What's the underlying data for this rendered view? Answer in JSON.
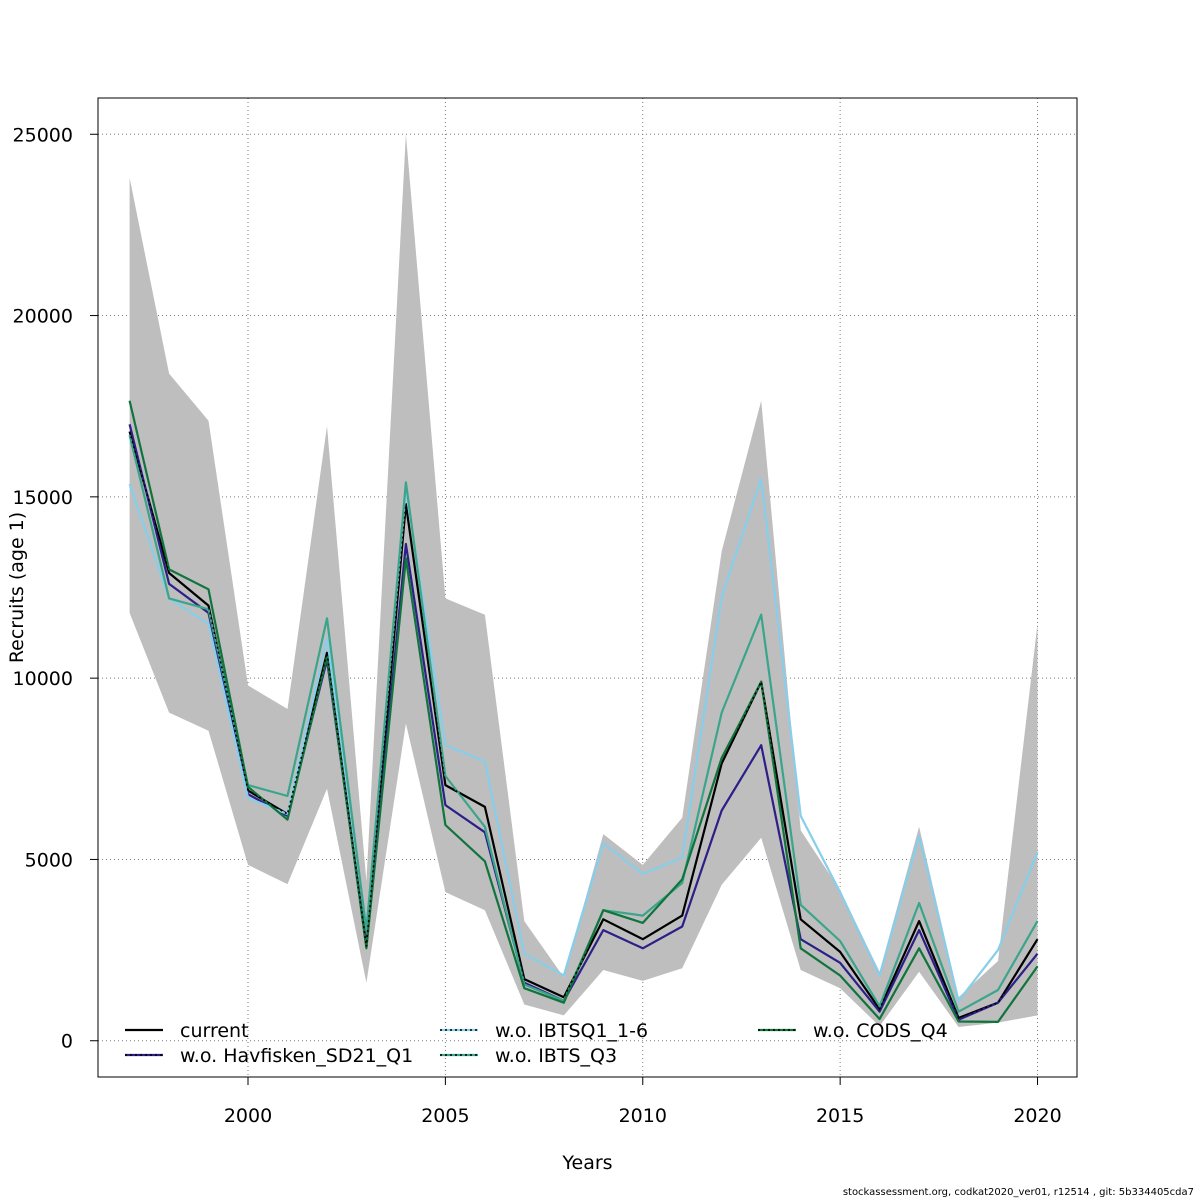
{
  "chart_data": {
    "type": "line",
    "xlabel": "Years",
    "ylabel": "Recruits (age 1)",
    "xlim": [
      1996.2,
      2021.0
    ],
    "ylim": [
      -1000,
      26000
    ],
    "x_ticks": [
      2000,
      2005,
      2010,
      2015,
      2020
    ],
    "y_ticks": [
      0,
      5000,
      10000,
      15000,
      20000,
      25000
    ],
    "grid": true,
    "legend_position": "bottom",
    "x": [
      1997,
      1998,
      1999,
      2000,
      2001,
      2002,
      2003,
      2004,
      2005,
      2006,
      2007,
      2008,
      2009,
      2010,
      2011,
      2012,
      2013,
      2014,
      2015,
      2016,
      2017,
      2018,
      2019,
      2020
    ],
    "confidence_band": {
      "color": "#bebebe",
      "lower": [
        11800,
        9050,
        8550,
        4850,
        4320,
        6950,
        1600,
        8750,
        4100,
        3600,
        1000,
        700,
        1950,
        1650,
        2000,
        4300,
        5600,
        1950,
        1450,
        400,
        1900,
        380,
        500,
        700
      ],
      "upper": [
        23800,
        18400,
        17100,
        9800,
        9150,
        16950,
        4400,
        25000,
        12200,
        11750,
        3300,
        1750,
        5700,
        4850,
        6150,
        13500,
        17650,
        5800,
        4150,
        1900,
        5900,
        1200,
        2200,
        11500
      ]
    },
    "series": [
      {
        "name": "current",
        "color": "#000000",
        "dashed_overlay": false,
        "values": [
          16800,
          12900,
          12000,
          6900,
          6250,
          10700,
          2600,
          14800,
          7050,
          6450,
          1700,
          1200,
          3350,
          2800,
          3450,
          7650,
          9900,
          3350,
          2450,
          870,
          3300,
          630,
          1050,
          2800
        ]
      },
      {
        "name": "w.o. Havfisken_SD21_Q1",
        "color": "#2c1f87",
        "dashed_overlay": true,
        "values": [
          17000,
          12600,
          11800,
          6800,
          6200,
          10500,
          2650,
          13700,
          6500,
          5750,
          1600,
          1100,
          3050,
          2550,
          3150,
          6350,
          8150,
          2800,
          2150,
          800,
          3050,
          580,
          1050,
          2400
        ]
      },
      {
        "name": "w.o. IBTSQ1_1-6",
        "color": "#87ceeb",
        "dashed_overlay": true,
        "values": [
          15350,
          12200,
          11500,
          6700,
          6250,
          11100,
          3100,
          15200,
          8150,
          7700,
          2400,
          1800,
          5450,
          4600,
          5050,
          12250,
          15500,
          6200,
          4100,
          1800,
          5650,
          1100,
          2500,
          5200
        ]
      },
      {
        "name": "w.o. IBTS_Q3",
        "color": "#3aa58a",
        "dashed_overlay": true,
        "values": [
          16700,
          12200,
          11900,
          7050,
          6750,
          11650,
          3050,
          15400,
          7300,
          5900,
          1550,
          1100,
          3600,
          3450,
          4350,
          9050,
          11750,
          3750,
          2750,
          950,
          3800,
          800,
          1400,
          3300
        ]
      },
      {
        "name": "w.o. CODS_Q4",
        "color": "#10743c",
        "dashed_overlay": true,
        "values": [
          17650,
          13000,
          12450,
          7000,
          6100,
          10600,
          2550,
          13300,
          5950,
          4950,
          1450,
          1050,
          3600,
          3250,
          4450,
          7800,
          9900,
          2550,
          1800,
          600,
          2550,
          530,
          520,
          2050
        ]
      }
    ]
  },
  "footer": {
    "text": "stockassessment.org, codkat2020_ver01, r12514 , git: 5b334405cda7"
  }
}
